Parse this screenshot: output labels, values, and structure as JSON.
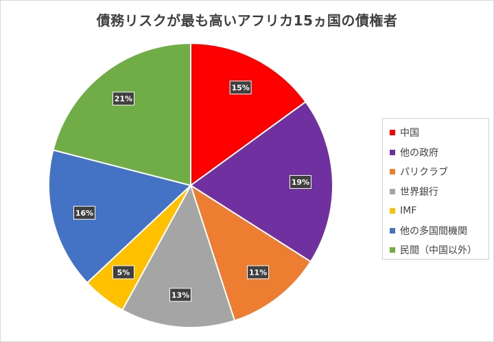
{
  "title": "債務リスクが最も高いアフリカ15ヵ国の債権者",
  "chart_data": {
    "type": "pie",
    "title": "債務リスクが最も高いアフリカ15ヵ国の債権者",
    "categories": [
      "中国",
      "他の政府",
      "パリクラブ",
      "世界銀行",
      "IMF",
      "他の多国間機関",
      "民間（中国以外）"
    ],
    "values": [
      15,
      19,
      11,
      13,
      5,
      16,
      21
    ],
    "labels": [
      "15%",
      "19%",
      "11%",
      "13%",
      "5%",
      "16%",
      "21%"
    ],
    "colors": [
      "#ff0000",
      "#7030a0",
      "#ed7d31",
      "#a5a5a5",
      "#ffc000",
      "#4472c4",
      "#70ad47"
    ],
    "start_angle": "12 o'clock, clockwise",
    "legend_position": "right"
  }
}
